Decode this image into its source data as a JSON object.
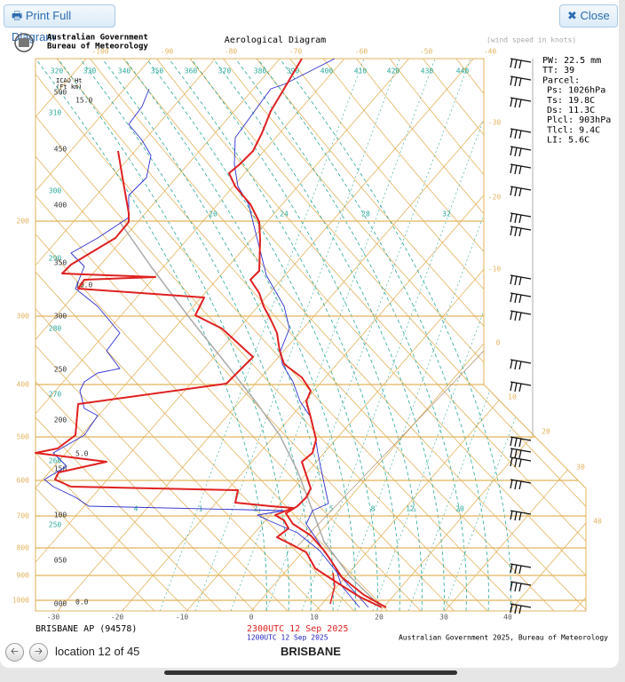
{
  "buttons": {
    "print": "Print Full Diagram",
    "close": "Close"
  },
  "header": {
    "agency_line1": "Australian Government",
    "agency_line2": "Bureau of Meteorology",
    "title": "Aerological Diagram",
    "wind_note": "(wind speed in knots)"
  },
  "stats": [
    "PW: 22.5 mm",
    "TT: 39",
    "Parcel:",
    "Ps: 1026hPa",
    "Ts: 19.8C",
    "Ds: 11.3C",
    "Plcl: 903hPa",
    "Tlcl: 9.4C",
    "LI: 5.6C"
  ],
  "axes": {
    "pressure": [
      "1000",
      "900",
      "800",
      "700",
      "600",
      "500",
      "400",
      "300",
      "200"
    ],
    "temp_bottom": [
      "-30",
      "-20",
      "-10",
      "0",
      "10",
      "20",
      "30",
      "40"
    ],
    "temp_top": [
      "-100",
      "-90",
      "-80",
      "-70",
      "-60",
      "-50",
      "-40"
    ],
    "temp_right": [
      "-30",
      "-20",
      "-10",
      "0",
      "10",
      "20",
      "30",
      "40"
    ],
    "theta_top": [
      "320",
      "330",
      "340",
      "350",
      "360",
      "370",
      "380",
      "390",
      "400",
      "410",
      "420",
      "430",
      "440"
    ],
    "theta_left": [
      "310",
      "300",
      "290",
      "280",
      "270",
      "260",
      "250"
    ],
    "mixing_upper": [
      "20",
      "24",
      "28",
      "32"
    ],
    "mixing_lower": [
      "4",
      "1",
      "2",
      "5",
      "8",
      "12",
      "20"
    ],
    "height_title": "ICAO Ht",
    "height_units": "(Ft km)",
    "height_km": [
      "15.0",
      "10.0",
      "5.0",
      "0.0"
    ],
    "height_ft": [
      "500",
      "450",
      "400",
      "350",
      "300",
      "250",
      "200",
      "150",
      "100",
      "050",
      "000"
    ]
  },
  "footer": {
    "station": "BRISBANE AP (94578)",
    "time_latest": "2300UTC 12 Sep 2025",
    "time_previous": "1200UTC 12 Sep 2025",
    "credit": "Australian Government 2025, Bureau of Meteorology"
  },
  "nav": {
    "location": "location 12 of 45",
    "name": "BRISBANE"
  }
}
